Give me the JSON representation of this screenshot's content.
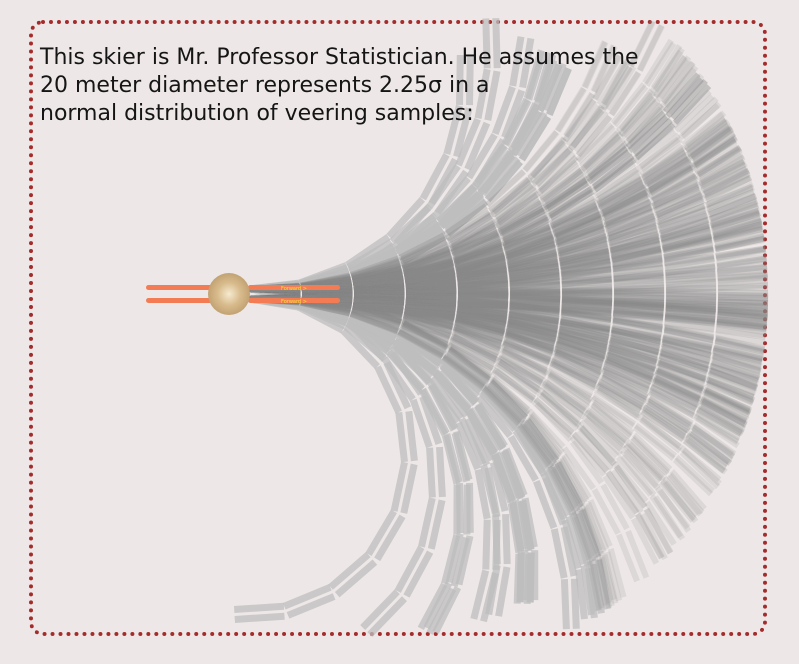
{
  "caption": "This skier is Mr. Professor Statistician. He assumes the\n20 meter diameter represents 2.25σ in a\nnormal distribution of veering samples:",
  "skier": {
    "ski_label": "Forward >",
    "ski_color": "#f47c55",
    "body_color": "#c8a87a",
    "label_color": "#f5e236"
  },
  "trails": {
    "color": "#8a8a8a",
    "outline_color": "#bdbdbd"
  },
  "frame_color": "#a52c2c"
}
